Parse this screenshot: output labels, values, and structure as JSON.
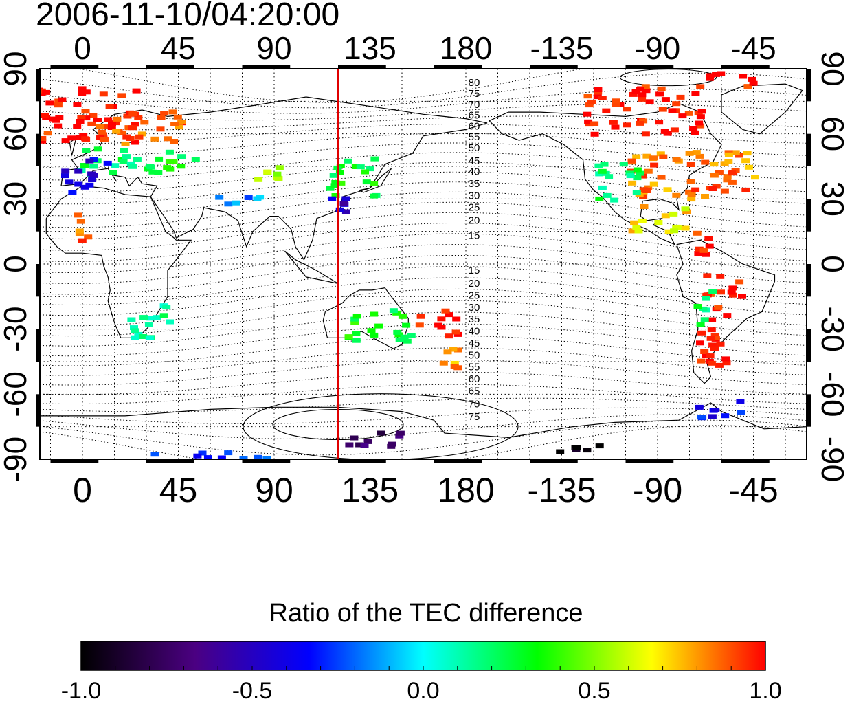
{
  "title": "2006-11-10/04:20:00",
  "map": {
    "projection": "equirectangular",
    "lon_range": [
      -20,
      340
    ],
    "lat_range": [
      -90,
      90
    ],
    "grid": true,
    "top_lon_ticks": [
      "0",
      "45",
      "90",
      "135",
      "180",
      "-135",
      "-90",
      "-45"
    ],
    "bottom_lon_ticks": [
      "0",
      "45",
      "90",
      "135",
      "180",
      "-135",
      "-90",
      "-45"
    ],
    "left_lat_ticks": [
      "90",
      "60",
      "30",
      "0",
      "-30",
      "-60",
      "-90"
    ],
    "right_lat_ticks": [
      "90",
      "60",
      "30",
      "0",
      "-30",
      "-60",
      "-90"
    ],
    "terminator_line": {
      "lon": 120,
      "color": "#e00000"
    },
    "contour_labels_north": [
      "80",
      "75",
      "70",
      "65",
      "60",
      "55",
      "50",
      "45",
      "40",
      "35",
      "30",
      "25",
      "20",
      "15"
    ],
    "contour_labels_south": [
      "15",
      "20",
      "25",
      "30",
      "35",
      "40",
      "45",
      "50",
      "55",
      "60",
      "65",
      "70",
      "75"
    ]
  },
  "colorbar": {
    "title": "Ratio of the TEC difference",
    "min": -1.0,
    "max": 1.0,
    "tick_labels": [
      "-1.0",
      "-0.5",
      "0.0",
      "0.5",
      "1.0"
    ],
    "colors": [
      "#000000",
      "#4b0082",
      "#0000ff",
      "#00ffff",
      "#00ff00",
      "#ffff00",
      "#ff0000"
    ]
  },
  "observations": [
    {
      "lon": 0,
      "lat": 70,
      "w": 50,
      "h": 16,
      "ratio": 1.0
    },
    {
      "lon": 25,
      "lat": 64,
      "w": 40,
      "h": 10,
      "ratio": 0.9
    },
    {
      "lon": 10,
      "lat": 48,
      "w": 30,
      "h": 8,
      "ratio": 0.2
    },
    {
      "lon": 0,
      "lat": 42,
      "w": 20,
      "h": 10,
      "ratio": -0.4
    },
    {
      "lon": 40,
      "lat": 48,
      "w": 25,
      "h": 8,
      "ratio": 0.3
    },
    {
      "lon": 85,
      "lat": 44,
      "w": 20,
      "h": 5,
      "ratio": 0.6
    },
    {
      "lon": 72,
      "lat": 30,
      "w": 20,
      "h": 4,
      "ratio": -0.15
    },
    {
      "lon": 0,
      "lat": 16,
      "w": 8,
      "h": 10,
      "ratio": 0.85
    },
    {
      "lon": 125,
      "lat": 42,
      "w": 22,
      "h": 12,
      "ratio": 0.3
    },
    {
      "lon": 118,
      "lat": 28,
      "w": 15,
      "h": 6,
      "ratio": -0.5
    },
    {
      "lon": 30,
      "lat": -26,
      "w": 22,
      "h": 10,
      "ratio": 0.15
    },
    {
      "lon": 138,
      "lat": -28,
      "w": 30,
      "h": 10,
      "ratio": 0.3
    },
    {
      "lon": 165,
      "lat": -26,
      "w": 20,
      "h": 8,
      "ratio": 1.0
    },
    {
      "lon": 172,
      "lat": -42,
      "w": 12,
      "h": 8,
      "ratio": 0.8
    },
    {
      "lon": 262,
      "lat": 72,
      "w": 55,
      "h": 14,
      "ratio": 1.0
    },
    {
      "lon": 300,
      "lat": 86,
      "w": 30,
      "h": 4,
      "ratio": 1.0
    },
    {
      "lon": 285,
      "lat": 42,
      "w": 60,
      "h": 14,
      "ratio": 0.85
    },
    {
      "lon": 250,
      "lat": 40,
      "w": 20,
      "h": 12,
      "ratio": 0.2
    },
    {
      "lon": 268,
      "lat": 22,
      "w": 28,
      "h": 8,
      "ratio": 0.7
    },
    {
      "lon": 290,
      "lat": 10,
      "w": 12,
      "h": 8,
      "ratio": 1.0
    },
    {
      "lon": 300,
      "lat": -12,
      "w": 18,
      "h": 10,
      "ratio": 1.0
    },
    {
      "lon": 295,
      "lat": -35,
      "w": 18,
      "h": 16,
      "ratio": 1.0
    },
    {
      "lon": 290,
      "lat": -20,
      "w": 8,
      "h": 12,
      "ratio": 0.2
    },
    {
      "lon": 140,
      "lat": -80,
      "w": 35,
      "h": 4,
      "ratio": -0.75
    },
    {
      "lon": 55,
      "lat": -87,
      "w": 60,
      "h": 2,
      "ratio": -0.25
    },
    {
      "lon": 300,
      "lat": -66,
      "w": 25,
      "h": 5,
      "ratio": -0.35
    },
    {
      "lon": 230,
      "lat": -85,
      "w": 25,
      "h": 3,
      "ratio": -1.0
    }
  ]
}
